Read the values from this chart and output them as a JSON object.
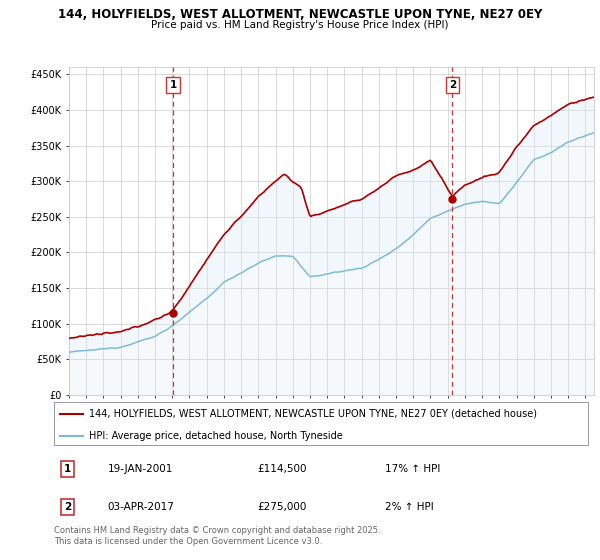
{
  "title": "144, HOLYFIELDS, WEST ALLOTMENT, NEWCASTLE UPON TYNE, NE27 0EY",
  "subtitle": "Price paid vs. HM Land Registry's House Price Index (HPI)",
  "legend_line1": "144, HOLYFIELDS, WEST ALLOTMENT, NEWCASTLE UPON TYNE, NE27 0EY (detached house)",
  "legend_line2": "HPI: Average price, detached house, North Tyneside",
  "footer": "Contains HM Land Registry data © Crown copyright and database right 2025.\nThis data is licensed under the Open Government Licence v3.0.",
  "marker1_date": "19-JAN-2001",
  "marker1_price": "£114,500",
  "marker1_hpi": "17% ↑ HPI",
  "marker2_date": "03-APR-2017",
  "marker2_price": "£275,000",
  "marker2_hpi": "2% ↑ HPI",
  "hpi_color": "#7ab8d9",
  "hpi_fill_color": "#daeaf5",
  "price_color": "#aa0000",
  "marker_vline_color": "#cc3333",
  "background_color": "#ffffff",
  "grid_color": "#cccccc",
  "ylim": [
    0,
    460000
  ],
  "yticks": [
    0,
    50000,
    100000,
    150000,
    200000,
    250000,
    300000,
    350000,
    400000,
    450000
  ],
  "ytick_labels": [
    "£0",
    "£50K",
    "£100K",
    "£150K",
    "£200K",
    "£250K",
    "£300K",
    "£350K",
    "£400K",
    "£450K"
  ],
  "xlim_start": 1995.0,
  "xlim_end": 2025.5,
  "marker1_x": 2001.05,
  "marker1_y": 114500,
  "marker2_x": 2017.27,
  "marker2_y": 275000,
  "title_fontsize": 8.5,
  "subtitle_fontsize": 7.5,
  "tick_fontsize": 7,
  "legend_fontsize": 7,
  "table_fontsize": 7.5,
  "footer_fontsize": 6
}
